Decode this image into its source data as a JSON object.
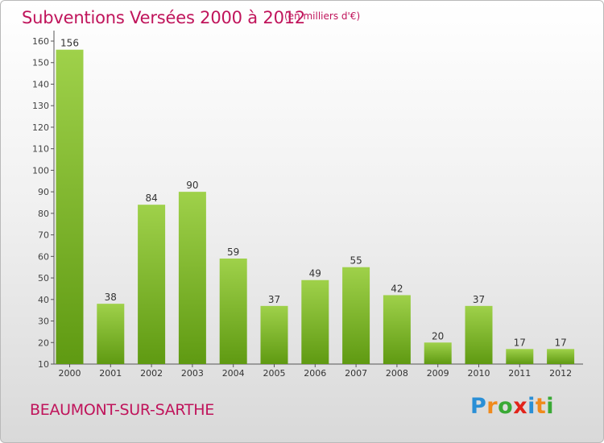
{
  "title": "Subventions Versées 2000 à 2012",
  "subtitle": "(en milliers d'€)",
  "commune": "BEAUMONT-SUR-SARTHE",
  "logo": {
    "letters": [
      {
        "char": "P",
        "color": "#2a8fd6"
      },
      {
        "char": "r",
        "color": "#f08a1c"
      },
      {
        "char": "o",
        "color": "#39a935"
      },
      {
        "char": "x",
        "color": "#e2231a"
      },
      {
        "char": "i",
        "color": "#2a8fd6"
      },
      {
        "char": "t",
        "color": "#f08a1c"
      },
      {
        "char": "i",
        "color": "#39a935"
      }
    ]
  },
  "colors": {
    "title": "#c0145b",
    "bar_light": "#9fd14a",
    "bar_dark": "#5f9a12",
    "axis": "#555555",
    "grid": "#cccccc"
  },
  "chart_data": {
    "type": "bar",
    "categories": [
      "2000",
      "2001",
      "2002",
      "2003",
      "2004",
      "2005",
      "2006",
      "2007",
      "2008",
      "2009",
      "2010",
      "2011",
      "2012"
    ],
    "values": [
      156,
      38,
      84,
      90,
      59,
      37,
      49,
      55,
      42,
      20,
      37,
      17,
      17
    ],
    "ylim": [
      10,
      160
    ],
    "yticks": [
      10,
      20,
      30,
      40,
      50,
      60,
      70,
      80,
      90,
      100,
      110,
      120,
      130,
      140,
      150,
      160
    ],
    "data_labels": true,
    "grid": false,
    "xlabel": "",
    "ylabel": ""
  }
}
